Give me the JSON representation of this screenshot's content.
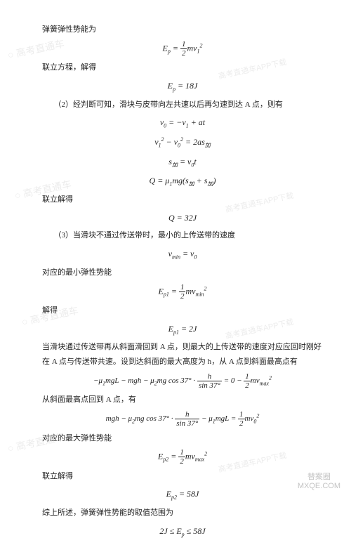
{
  "lines": {
    "l1": "弹簧弹性势能为",
    "l2": "联立方程，解得",
    "l3": "（2）经判断可知，滑块与皮带向左共速以后再匀速到达 A 点，则有",
    "l4": "联立解得",
    "l5": "（3）当滑块不通过传送带时，最小的上传送带的速度",
    "l6": "对应的最小弹性势能",
    "l7": "解得",
    "l8": "当滑块通过传送带再从斜面滑回到 A 点，则最大的上传送带的速度对应应回时刚好在 A 点与传送带共速。设到达斜面的最大高度为 h，从 A 点到斜面最高点有",
    "l9": "从斜面最高点回到 A 点，有",
    "l10": "对应的最大弹性势能",
    "l11": "联立解得",
    "l12": "综上所述，弹簧弹性势能的取值范围为"
  },
  "formulas": {
    "f1_left": "E",
    "f1_sub": "p",
    "f1_eq": " = ",
    "f1_frac_num": "1",
    "f1_frac_den": "2",
    "f1_right": "mv",
    "f1_rsub": "1",
    "f1_rsup": "2",
    "f2": "E",
    "f2_sub": "p",
    "f2_val": " = 18J",
    "f3a": "v",
    "f3a_sub": "0",
    "f3a_mid": " = −v",
    "f3a_sub2": "1",
    "f3a_end": " + at",
    "f3b": "v",
    "f3b_sub": "1",
    "f3b_sup": "2",
    "f3b_mid": " − v",
    "f3b_sub2": "0",
    "f3b_sup2": "2",
    "f3b_end": " = 2as",
    "f3b_sub3": "加",
    "f3c": "s",
    "f3c_sub": "加",
    "f3c_mid": " = v",
    "f3c_sub2": "0",
    "f3c_end": "t",
    "f3d": "Q = μ",
    "f3d_sub": "1",
    "f3d_mid": "mg(s",
    "f3d_sub2": "加",
    "f3d_mid2": " + s",
    "f3d_sub3": "加",
    "f3d_end": ")",
    "f4": "Q = 32J",
    "f5": "v",
    "f5_sub": "min",
    "f5_mid": " = v",
    "f5_sub2": "0",
    "f6": "E",
    "f6_sub": "p1",
    "f6_eq": " = ",
    "f6_num": "1",
    "f6_den": "2",
    "f6_right": "mv",
    "f6_rsub": "min",
    "f6_rsup": "2",
    "f7": "E",
    "f7_sub": "p1",
    "f7_val": " = 2J",
    "f8_a": "−μ",
    "f8_a_sub": "1",
    "f8_b": "mgL − mgh − μ",
    "f8_b_sub": "2",
    "f8_c": "mg cos 37° · ",
    "f8_frac1_num": "h",
    "f8_frac1_den": "sin 37°",
    "f8_d": " = 0 − ",
    "f8_frac2_num": "1",
    "f8_frac2_den": "2",
    "f8_e": "mv",
    "f8_e_sub": "max",
    "f8_e_sup": "2",
    "f9_a": "mgh − μ",
    "f9_a_sub": "2",
    "f9_b": "mg cos 37° · ",
    "f9_frac1_num": "h",
    "f9_frac1_den": "sin 37°",
    "f9_c": " − μ",
    "f9_c_sub": "1",
    "f9_d": "mgL = ",
    "f9_frac2_num": "1",
    "f9_frac2_den": "2",
    "f9_e": "mv",
    "f9_e_sub": "0",
    "f9_e_sup": "2",
    "f10": "E",
    "f10_sub": "p2",
    "f10_eq": " = ",
    "f10_num": "1",
    "f10_den": "2",
    "f10_right": "mv",
    "f10_rsub": "max",
    "f10_rsup": "2",
    "f11": "E",
    "f11_sub": "p2",
    "f11_val": " = 58J",
    "f12": "2J ≤ E",
    "f12_sub": "p",
    "f12_end": " ≤ 58J"
  },
  "watermarks": {
    "wm_main": "○ 高考直通车",
    "wm_sub": "高考直通车APP下载"
  },
  "footer": {
    "brand1": "替案圈",
    "brand2": "MXQE.COM"
  }
}
